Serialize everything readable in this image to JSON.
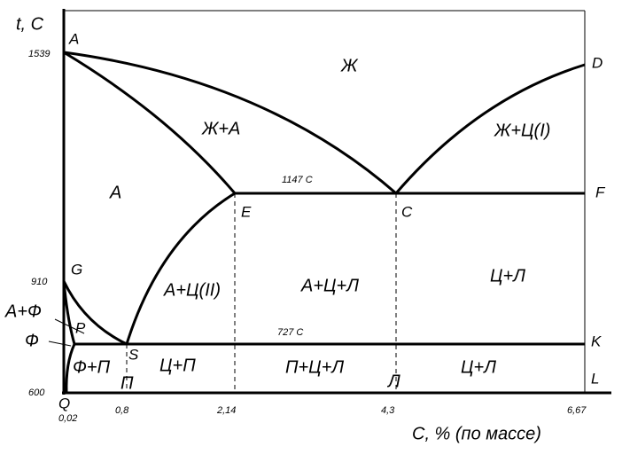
{
  "axes": {
    "y_title": "t, C",
    "x_title": "C, % (по массе)",
    "y_labels": [
      "1539",
      "910",
      "600"
    ],
    "x_labels": [
      "0,02",
      "0,8",
      "2,14",
      "4,3",
      "6,67"
    ]
  },
  "points": {
    "A": "A",
    "D": "D",
    "E": "E",
    "C": "C",
    "F": "F",
    "G": "G",
    "P": "P",
    "S": "S",
    "K": "K",
    "Q": "Q",
    "L": "L"
  },
  "temperatures": [
    "1147  C",
    "727  C"
  ],
  "phases": [
    "Ж",
    "Ж+А",
    "Ж+Ц(I)",
    "А",
    "А+Ц(II)",
    "А+Ц+Л",
    "Ц+Л",
    "А+Ф",
    "Ф",
    "Ф+П",
    "Ц+П",
    "П+Ц+Л",
    "Ц+Л",
    "П",
    "Л"
  ]
}
